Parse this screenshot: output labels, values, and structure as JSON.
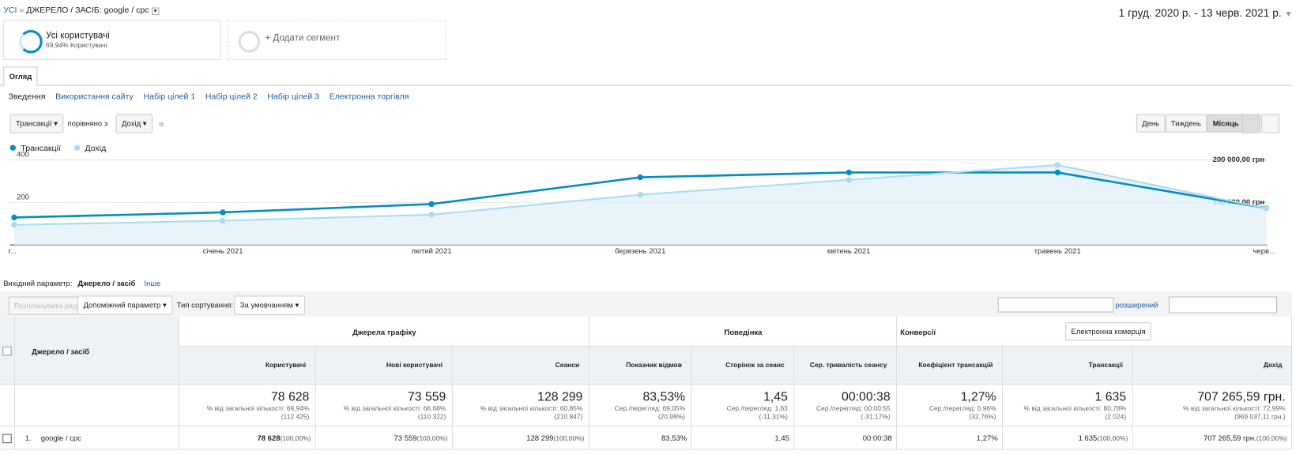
{
  "breadcrumb": {
    "all": "УСІ",
    "separator": "»",
    "current": "ДЖЕРЕЛО / ЗАСІБ: google / cpc"
  },
  "date_range": "1 груд. 2020 р. - 13 черв. 2021 р.",
  "segments": [
    {
      "name": "Усі користувачі",
      "detail": "69,94% Користувачі"
    },
    {
      "name": "+ Додати сегмент"
    }
  ],
  "tab": "Огляд",
  "subtabs": [
    "Зведення",
    "Використання сайту",
    "Набір цілей 1",
    "Набір цілей 2",
    "Набір цілей 3",
    "Електронна торгівля"
  ],
  "metric_picker": {
    "metric": "Трансакції",
    "compare_text": "порівняно з",
    "compare_metric": "Дохід"
  },
  "period_buttons": [
    "День",
    "Тиждень",
    "Місяць"
  ],
  "chart_data": {
    "type": "line",
    "categories": [
      "г...",
      "січень 2021",
      "лютий 2021",
      "березень 2021",
      "квітень 2021",
      "травень 2021",
      "черв..."
    ],
    "series": [
      {
        "name": "Трансакції",
        "color": "#058dc7",
        "values": [
          129,
          153,
          192,
          318,
          341,
          341,
          173
        ]
      },
      {
        "name": "Дохід",
        "color": "#a9dcf2",
        "axis": "y2",
        "values": [
          47000,
          57000,
          71000,
          118000,
          153000,
          188000,
          86000
        ]
      }
    ],
    "ylim": [
      0,
      400
    ],
    "yticks": [
      200,
      400
    ],
    "y2lim": [
      0,
      200000
    ],
    "y2ticks": [
      {
        "value": 100000,
        "label": "100 000,00 грн"
      },
      {
        "value": 200000,
        "label": "200 000,00 грн"
      }
    ],
    "grid": true
  },
  "dimension_bar": {
    "label": "Вихідний параметр:",
    "selected": "Джерело / засіб",
    "other": "Інше"
  },
  "table_controls": {
    "plot_rows": "Розпланувати ряди",
    "secondary": "Допоміжний параметр",
    "sort_label": "Тип сортування:",
    "sort_value": "За умовчанням",
    "advanced": "розширений"
  },
  "table": {
    "groups": [
      "Джерела трафіку",
      "Поведінка",
      "Конверсії"
    ],
    "conversion_select": "Електронна комерція",
    "dimension_header": "Джерело / засіб",
    "columns": [
      "Користувачі",
      "Нові користувачі",
      "Сеанси",
      "Показник відмов",
      "Сторінок за сеанс",
      "Сер. тривалість сеансу",
      "Коефіцієнт трансакцій",
      "Трансакції",
      "Дохід"
    ],
    "totals": [
      {
        "value": "78 628",
        "note": "% від загальної кількості: 69,94%",
        "sub": "(112 425)"
      },
      {
        "value": "73 559",
        "note": "% від загальної кількості: 66,68%",
        "sub": "(110 322)"
      },
      {
        "value": "128 299",
        "note": "% від загальної кількості: 60,85%",
        "sub": "(210 847)"
      },
      {
        "value": "83,53%",
        "note": "Сер./перегляд: 69,05%",
        "sub": "(20,98%)"
      },
      {
        "value": "1,45",
        "note": "Сер./перегляд: 1,63",
        "sub": "(-11,31%)"
      },
      {
        "value": "00:00:38",
        "note": "Сер./перегляд: 00:00:55",
        "sub": "(-31,17%)"
      },
      {
        "value": "1,27%",
        "note": "Сер./перегляд: 0,96%",
        "sub": "(32,76%)"
      },
      {
        "value": "1 635",
        "note": "% від загальної кількості: 80,78%",
        "sub": "(2 024)"
      },
      {
        "value": "707 265,59 грн.",
        "note": "% від загальної кількості: 72,99%",
        "sub": "(969 037,11 грн.)"
      }
    ],
    "rows": [
      {
        "index": "1.",
        "name": "google / cpc",
        "cells": [
          {
            "value": "78 628",
            "pct": "(100,00%)"
          },
          {
            "value": "73 559",
            "pct": "(100,00%)"
          },
          {
            "value": "128 299",
            "pct": "(100,00%)"
          },
          {
            "value": "83,53%"
          },
          {
            "value": "1,45"
          },
          {
            "value": "00:00:38"
          },
          {
            "value": "1,27%"
          },
          {
            "value": "1 635",
            "pct": "(100,00%)"
          },
          {
            "value": "707 265,59 грн.",
            "pct": "(100,00%)"
          }
        ]
      }
    ]
  }
}
